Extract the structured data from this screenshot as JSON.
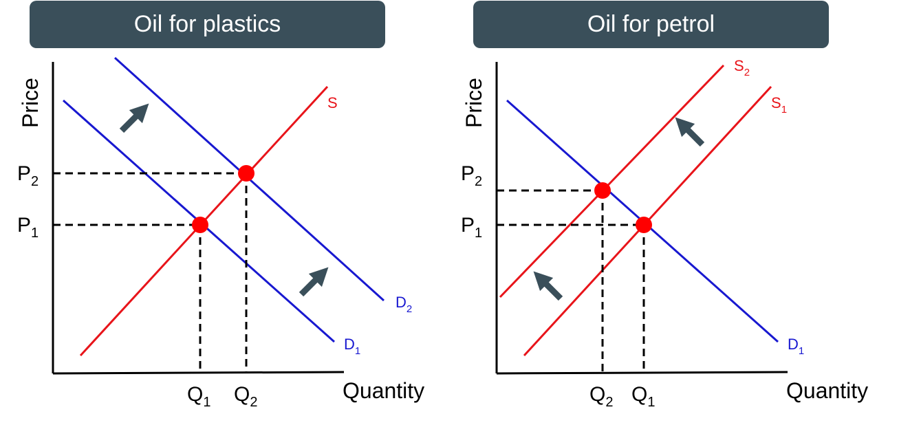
{
  "colors": {
    "title_bg": "#3a4f5a",
    "supply": "#e8141a",
    "demand": "#1818d0",
    "point": "#ff0000",
    "arrow": "#3a4f5a"
  },
  "left_panel": {
    "title": "Oil for plastics",
    "y_axis_label": "Price",
    "x_axis_label": "Quantity",
    "p2": {
      "main": "P",
      "sub": "2"
    },
    "p1": {
      "main": "P",
      "sub": "1"
    },
    "q1": {
      "main": "Q",
      "sub": "1"
    },
    "q2": {
      "main": "Q",
      "sub": "2"
    },
    "supply_label": "S",
    "d1": {
      "main": "D",
      "sub": "1"
    },
    "d2": {
      "main": "D",
      "sub": "2"
    },
    "arrow_icon": "arrow-up-right-icon"
  },
  "right_panel": {
    "title": "Oil for petrol",
    "y_axis_label": "Price",
    "x_axis_label": "Quantity",
    "p2": {
      "main": "P",
      "sub": "2"
    },
    "p1": {
      "main": "P",
      "sub": "1"
    },
    "q2": {
      "main": "Q",
      "sub": "2"
    },
    "q1": {
      "main": "Q",
      "sub": "1"
    },
    "s2": {
      "main": "S",
      "sub": "2"
    },
    "s1": {
      "main": "S",
      "sub": "1"
    },
    "d1": {
      "main": "D",
      "sub": "1"
    },
    "arrow_icon": "arrow-up-left-icon"
  }
}
